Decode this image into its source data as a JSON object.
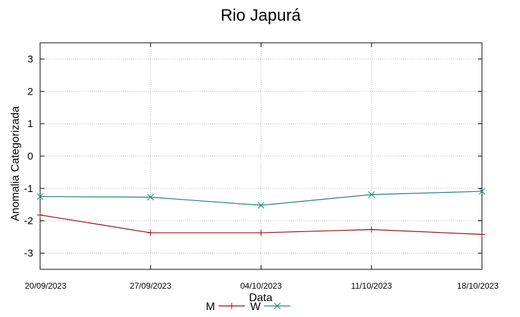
{
  "chart_data": {
    "type": "line",
    "title": "Rio Japurá",
    "xlabel": "Data",
    "ylabel": "Anomalia Categorizada",
    "x": [
      "20/09/2023",
      "27/09/2023",
      "04/10/2023",
      "11/10/2023",
      "18/10/2023"
    ],
    "ylim": [
      -3.5,
      3.5
    ],
    "yticks": [
      -3,
      -2,
      -1,
      0,
      1,
      2,
      3
    ],
    "grid": true,
    "legend_position": "bottom",
    "series": [
      {
        "name": "M",
        "marker": "+",
        "color": "#a00000",
        "values": [
          -1.82,
          -2.37,
          -2.37,
          -2.27,
          -2.42
        ]
      },
      {
        "name": "W",
        "marker": "x",
        "color": "#1a7f7f",
        "values": [
          -1.25,
          -1.27,
          -1.52,
          -1.19,
          -1.09
        ]
      }
    ]
  }
}
